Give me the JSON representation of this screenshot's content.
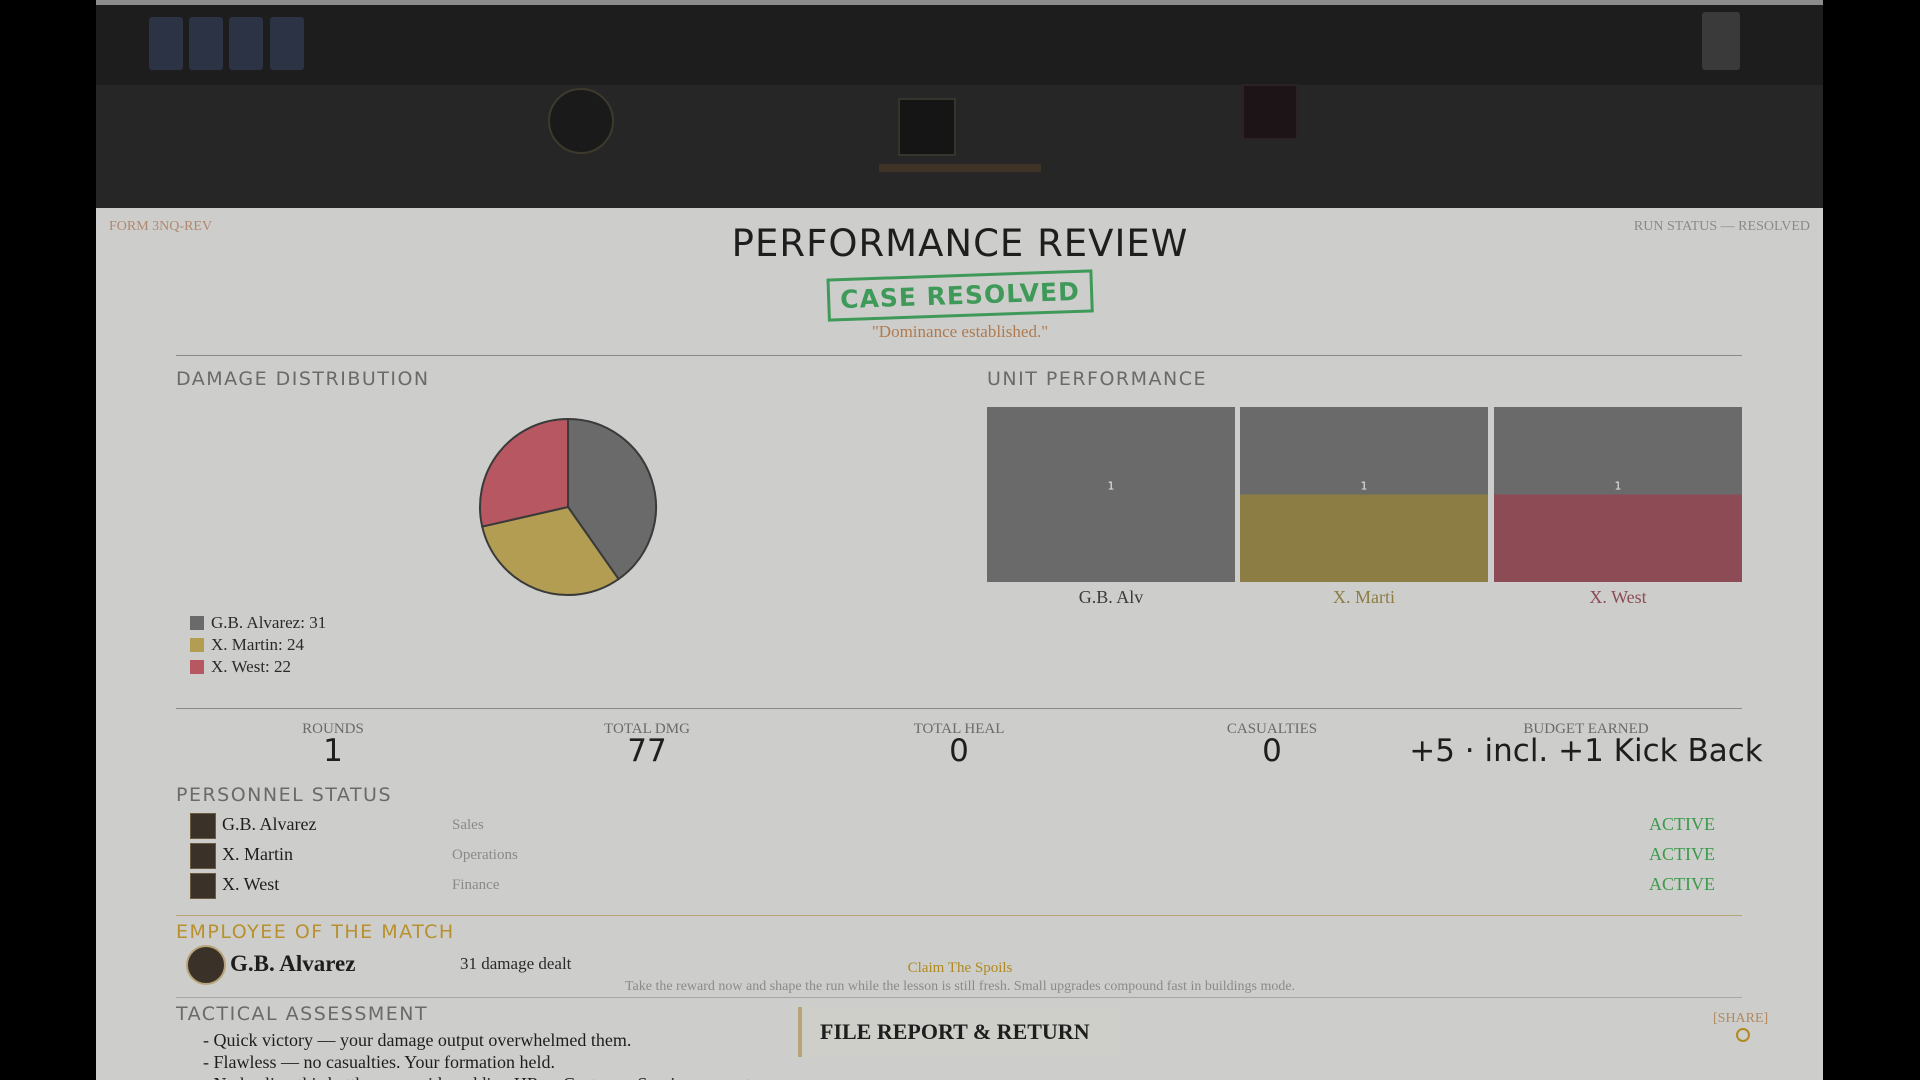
{
  "header": {
    "form": "FORM 3NQ-REV",
    "run_status": "RUN STATUS — RESOLVED",
    "title": "PERFORMANCE REVIEW",
    "stamp": "CASE RESOLVED",
    "quote": "\"Dominance established.\""
  },
  "chart_data": [
    {
      "type": "pie",
      "title": "DAMAGE DISTRIBUTION",
      "categories": [
        "G.B. Alvarez: 31",
        "X. Martin: 24",
        "X. West: 22"
      ],
      "values": [
        31,
        24,
        22
      ],
      "colors": [
        "#6a6a6a",
        "#b39d52",
        "#b65762"
      ]
    },
    {
      "type": "bar",
      "title": "UNIT PERFORMANCE",
      "categories": [
        "G.B. Alv",
        "X. Marti",
        "X. West"
      ],
      "values": [
        1,
        1,
        1
      ],
      "colors": [
        "#6a6a6a",
        "#8c7d45",
        "#8c4b55"
      ],
      "ylim": [
        0,
        2
      ]
    }
  ],
  "stats": [
    {
      "label": "ROUNDS",
      "value": 1
    },
    {
      "label": "TOTAL DMG",
      "value": 77
    },
    {
      "label": "TOTAL HEAL",
      "value": 0
    },
    {
      "label": "CASUALTIES",
      "value": 0
    },
    {
      "label": "BUDGET EARNED",
      "value": "+5 · incl. +1 Kick Back"
    }
  ],
  "personnel": {
    "title": "PERSONNEL STATUS",
    "rows": [
      {
        "name": "G.B. Alvarez",
        "department": "Sales",
        "status": "ACTIVE"
      },
      {
        "name": "X. Martin",
        "department": "Operations",
        "status": "ACTIVE"
      },
      {
        "name": "X. West",
        "department": "Finance",
        "status": "ACTIVE"
      }
    ]
  },
  "employee_of_match": {
    "title": "EMPLOYEE OF THE MATCH",
    "name": "G.B. Alvarez",
    "detail": "31 damage dealt"
  },
  "reward": {
    "title": "Claim The Spoils",
    "description": "Take the reward now and shape the run while the lesson is still fresh. Small upgrades compound fast in buildings mode."
  },
  "tactical": {
    "title": "TACTICAL ASSESSMENT",
    "lines": [
      "- Quick victory — your damage output overwhelmed them.",
      "- Flawless — no casualties. Your formation held.",
      "- No healing this battle — consider adding HR or Customer Service support."
    ]
  },
  "button": "FILE REPORT & RETURN",
  "share": "[SHARE]"
}
